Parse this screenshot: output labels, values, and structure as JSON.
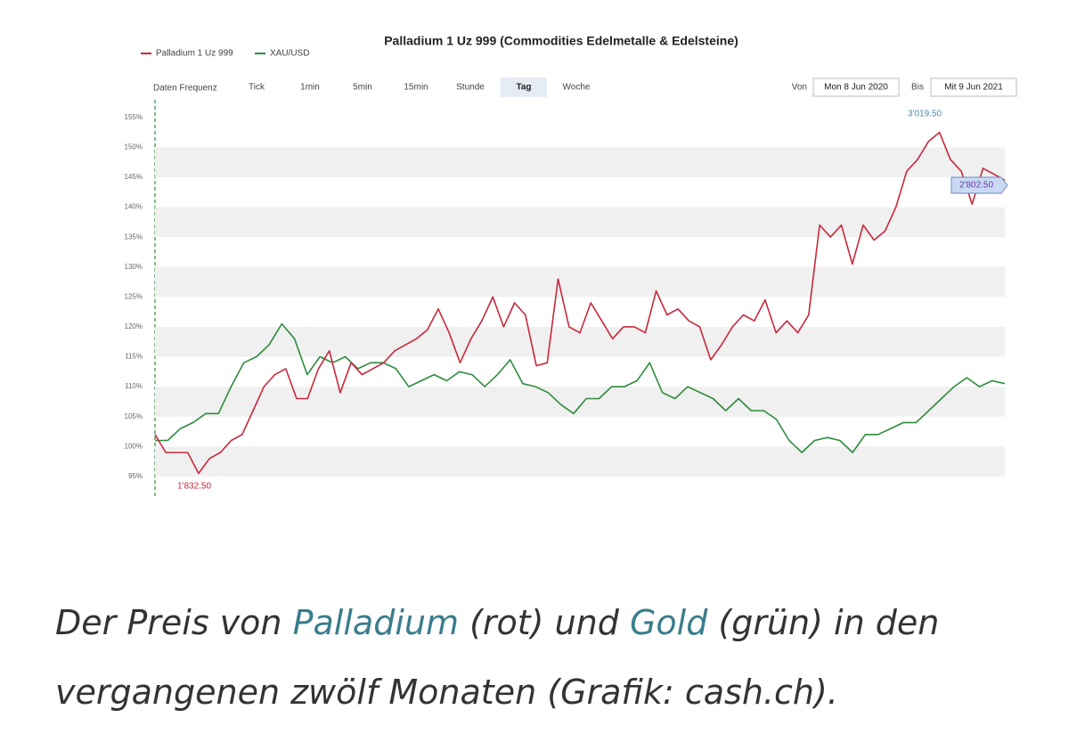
{
  "chart_data": {
    "type": "line",
    "title": "Palladium 1 Uz 999 (Commodities Edelmetalle & Edelsteine)",
    "series": [
      {
        "name": "Palladium 1 Uz 999",
        "color": "#c8283c",
        "values": [
          102,
          99,
          99,
          99,
          95.5,
          98,
          99,
          101,
          102,
          106,
          110,
          112,
          113,
          108,
          108,
          113,
          116,
          109,
          114,
          112,
          113,
          114,
          116,
          117,
          118,
          119.5,
          123,
          119,
          114,
          118,
          121,
          125,
          120,
          124,
          122,
          113.5,
          114,
          128,
          120,
          119,
          124,
          121,
          118,
          120,
          120,
          119,
          126,
          122,
          123,
          121,
          120,
          114.5,
          117,
          120,
          122,
          121,
          124.5,
          119,
          121,
          119,
          122,
          137,
          135,
          137,
          130.5,
          137,
          134.5,
          136,
          140,
          146,
          148,
          151,
          152.5,
          148,
          146,
          140.5,
          146.5,
          145.5,
          144.5
        ]
      },
      {
        "name": "XAU/USD",
        "color": "#2e8b3e",
        "values": [
          101,
          101,
          103,
          104,
          105.5,
          105.5,
          110,
          114,
          115,
          117,
          120.5,
          118,
          112,
          115,
          114,
          115,
          113,
          114,
          114,
          113,
          110,
          111,
          112,
          111,
          112.5,
          112,
          110,
          112,
          114.5,
          110.5,
          110,
          109,
          107,
          105.5,
          108,
          108,
          110,
          110,
          111,
          114,
          109,
          108,
          110,
          109,
          108,
          106,
          108,
          106,
          106,
          104.5,
          101,
          99,
          101,
          101.5,
          101,
          99,
          102,
          102,
          103,
          104,
          104,
          106,
          108,
          110,
          111.5,
          110,
          111,
          110.5
        ]
      }
    ],
    "ylim": [
      92,
      157.5
    ],
    "yticks": [
      {
        "value": 95,
        "label": "95%"
      },
      {
        "value": 100,
        "label": "100%"
      },
      {
        "value": 105,
        "label": "105%"
      },
      {
        "value": 110,
        "label": "110%"
      },
      {
        "value": 115,
        "label": "115%"
      },
      {
        "value": 120,
        "label": "120%"
      },
      {
        "value": 125,
        "label": "125%"
      },
      {
        "value": 130,
        "label": "130%"
      },
      {
        "value": 135,
        "label": "135%"
      },
      {
        "value": 140,
        "label": "140%"
      },
      {
        "value": 145,
        "label": "145%"
      },
      {
        "value": 150,
        "label": "150%"
      },
      {
        "value": 155,
        "label": "155%"
      }
    ],
    "grid": true,
    "annotations": [
      "1'832.50",
      "3'019.50",
      "2'802.50"
    ]
  },
  "toolbar": {
    "label": "Daten Frequenz",
    "options": [
      "Tick",
      "1min",
      "5min",
      "15min",
      "Stunde",
      "Tag",
      "Woche"
    ],
    "selected": "Tag",
    "from_label": "Von",
    "from": "Mon 8 Jun 2020",
    "to_label": "Bis",
    "to": "Mit 9 Jun 2021"
  },
  "caption": [
    "Der Preis von ",
    "Palladium",
    " (rot) und ",
    "Gold",
    " (grün) in den",
    "vergangenen zwölf Monaten (Grafik: cash.ch)."
  ]
}
